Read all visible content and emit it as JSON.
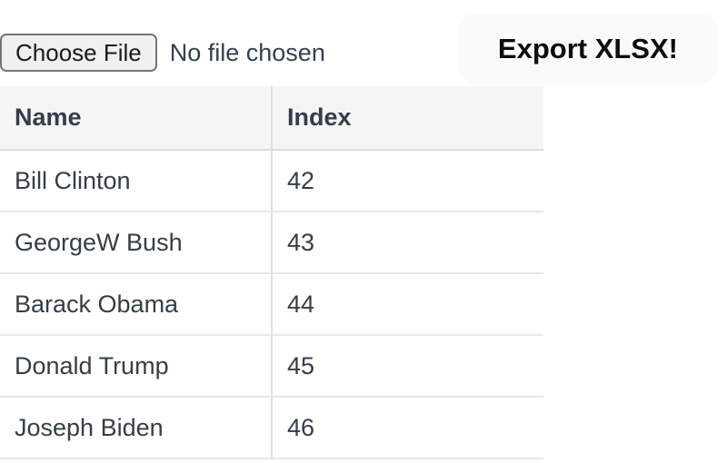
{
  "file_input": {
    "button_label": "Choose File",
    "status_text": "No file chosen"
  },
  "export_button": {
    "label": "Export XLSX!"
  },
  "table": {
    "columns": [
      "Name",
      "Index"
    ],
    "rows": [
      {
        "name": "Bill Clinton",
        "index": "42"
      },
      {
        "name": "GeorgeW Bush",
        "index": "43"
      },
      {
        "name": "Barack Obama",
        "index": "44"
      },
      {
        "name": "Donald Trump",
        "index": "45"
      },
      {
        "name": "Joseph Biden",
        "index": "46"
      }
    ]
  },
  "colors": {
    "page_background": "#ffffff",
    "table_header_background": "#f5f5f6",
    "table_border": "#e0e0e0",
    "text": "#353d49",
    "file_status_text": "#33404e",
    "export_button_background": "#fafafa",
    "export_button_text": "#0d0d0d",
    "choose_button_background": "#f0f0f0",
    "choose_button_border": "#757575"
  }
}
